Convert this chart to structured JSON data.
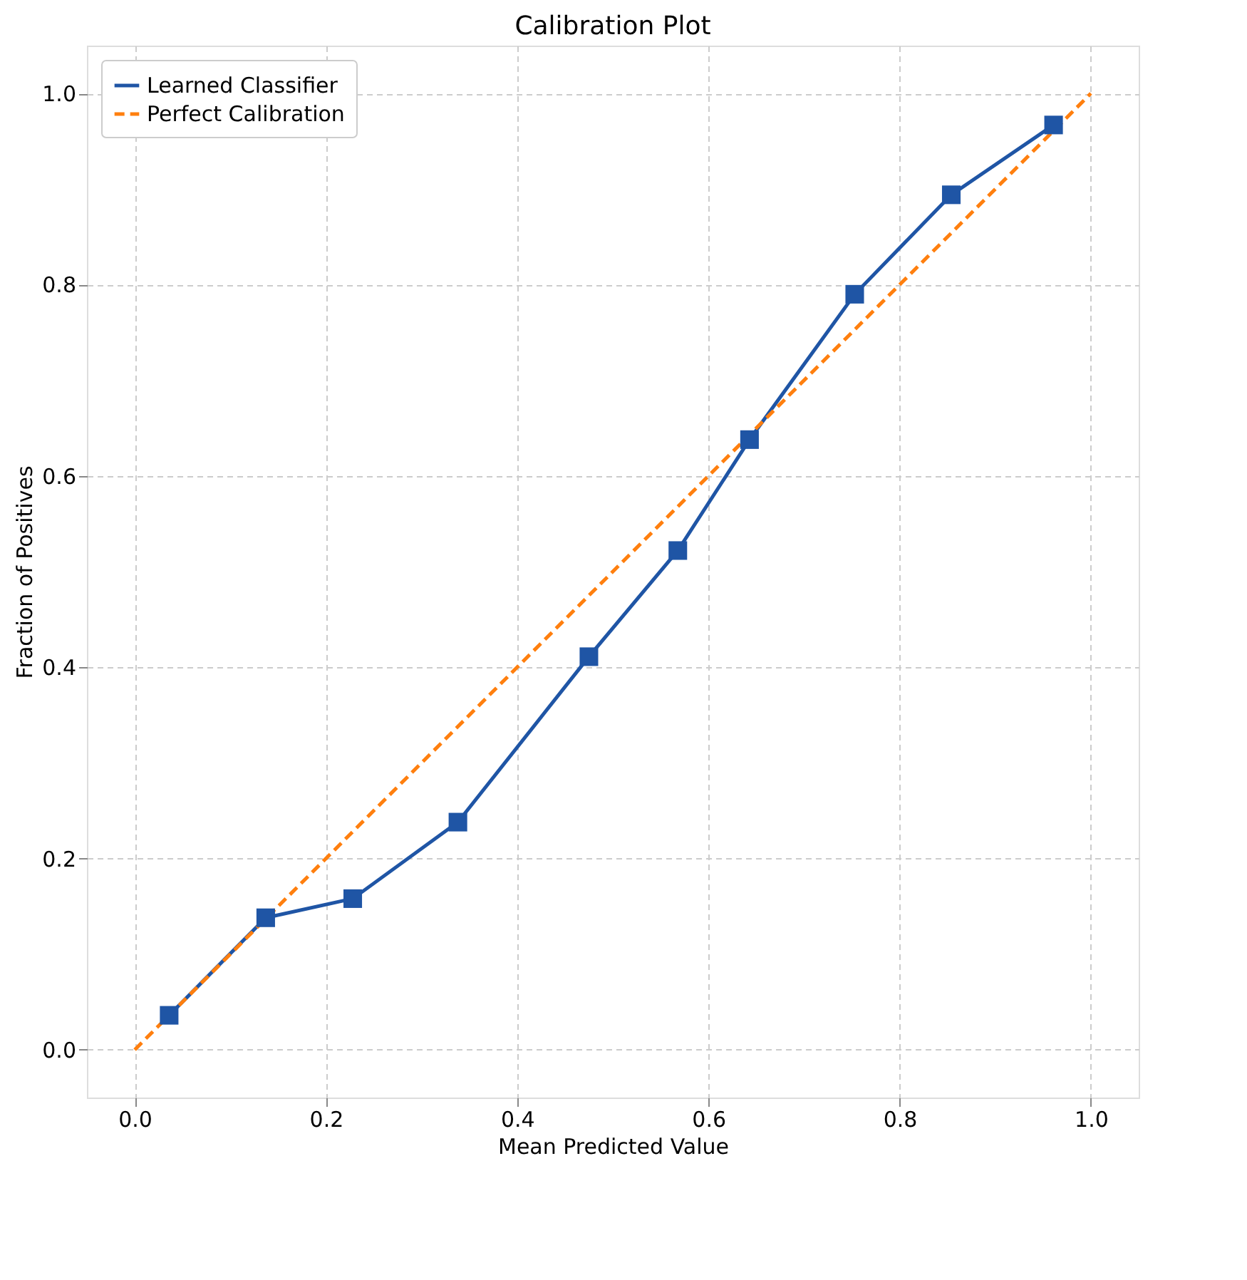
{
  "chart_data": {
    "type": "line",
    "title": "Calibration Plot",
    "xlabel": "Mean Predicted Value",
    "ylabel": "Fraction of Positives",
    "xlim": [
      -0.05,
      1.05
    ],
    "ylim": [
      -0.05,
      1.05
    ],
    "xticks": [
      {
        "value": 0,
        "label": "0.0"
      },
      0.2,
      0.4,
      0.6,
      0.8,
      {
        "value": 1,
        "label": "1.0"
      }
    ],
    "yticks": [
      {
        "value": 0,
        "label": "0.0"
      },
      0.2,
      0.4,
      0.6,
      0.8,
      {
        "value": 1,
        "label": "1.0"
      }
    ],
    "grid": true,
    "legend": "top left",
    "series": [
      {
        "name": "Learned Classifier",
        "color": "#1f55a5",
        "marker": "square",
        "line_style": "solid",
        "x": [
          0.036,
          0.137,
          0.228,
          0.338,
          0.475,
          0.568,
          0.643,
          0.753,
          0.854,
          0.961
        ],
        "values": [
          0.036,
          0.138,
          0.158,
          0.238,
          0.411,
          0.522,
          0.638,
          0.79,
          0.894,
          0.967
        ]
      },
      {
        "name": "Perfect Calibration",
        "color": "#ff7f0e",
        "marker": "none",
        "line_style": "dashed",
        "x": [
          0.0,
          1.0
        ],
        "values": [
          0.0,
          1.0
        ]
      }
    ]
  }
}
